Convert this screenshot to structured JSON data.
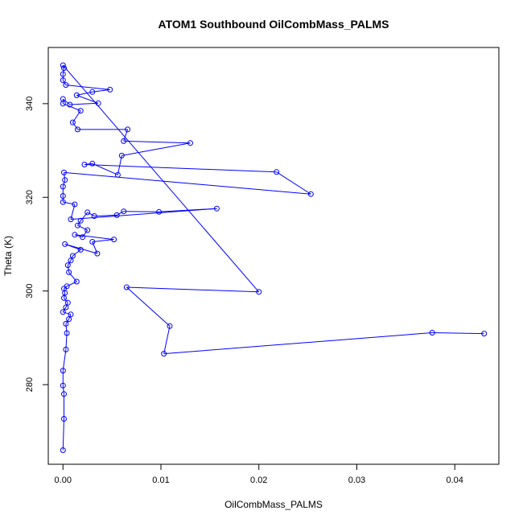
{
  "chart_data": {
    "type": "line",
    "title": "ATOM1 Southbound OilCombMass_PALMS",
    "xlabel": "OilCombMass_PALMS",
    "ylabel": "Theta (K)",
    "xlim": [
      -0.0015,
      0.0445
    ],
    "ylim": [
      263,
      352
    ],
    "xticks": [
      0.0,
      0.01,
      0.02,
      0.03,
      0.04
    ],
    "xtick_labels": [
      "0.00",
      "0.01",
      "0.02",
      "0.03",
      "0.04"
    ],
    "yticks": [
      280,
      300,
      320,
      340
    ],
    "ytick_labels": [
      "280",
      "300",
      "320",
      "340"
    ],
    "grid": false,
    "legend": "none",
    "colors": {
      "series": "#0000ff",
      "axes": "#000000"
    },
    "series": [
      {
        "marker": "open-circle",
        "points": [
          [
            0.0,
            266.0
          ],
          [
            0.0001,
            272.7
          ],
          [
            0.0001,
            278.0
          ],
          [
            0.0,
            279.8
          ],
          [
            0.0,
            283.0
          ],
          [
            0.0003,
            287.5
          ],
          [
            0.0004,
            291.0
          ],
          [
            0.0003,
            293.0
          ],
          [
            0.0006,
            294.0
          ],
          [
            0.0008,
            295.0
          ],
          [
            0.0,
            295.5
          ],
          [
            0.0003,
            296.5
          ],
          [
            0.0005,
            297.5
          ],
          [
            0.0001,
            298.5
          ],
          [
            0.0002,
            299.6
          ],
          [
            0.0001,
            300.5
          ],
          [
            0.0004,
            301.0
          ],
          [
            0.0014,
            302.0
          ],
          [
            0.0006,
            304.0
          ],
          [
            0.0005,
            305.5
          ],
          [
            0.0008,
            306.5
          ],
          [
            0.001,
            307.5
          ],
          [
            0.0018,
            308.8
          ],
          [
            0.0002,
            310.0
          ],
          [
            0.0035,
            308.0
          ],
          [
            0.003,
            310.5
          ],
          [
            0.0052,
            311.0
          ],
          [
            0.0012,
            312.0
          ],
          [
            0.002,
            311.5
          ],
          [
            0.0025,
            313.0
          ],
          [
            0.0015,
            314.0
          ],
          [
            0.0018,
            315.0
          ],
          [
            0.0025,
            316.8
          ],
          [
            0.0032,
            316.0
          ],
          [
            0.0055,
            316.2
          ],
          [
            0.0062,
            317.0
          ],
          [
            0.0098,
            316.9
          ],
          [
            0.0157,
            317.6
          ],
          [
            0.0008,
            315.3
          ],
          [
            0.0012,
            318.5
          ],
          [
            0.0,
            319.0
          ],
          [
            0.0,
            320.3
          ],
          [
            0.0,
            322.3
          ],
          [
            0.0002,
            323.7
          ],
          [
            0.0001,
            325.3
          ],
          [
            0.0253,
            320.7
          ],
          [
            0.0218,
            325.4
          ],
          [
            0.0022,
            327.0
          ],
          [
            0.003,
            327.2
          ],
          [
            0.0056,
            324.8
          ],
          [
            0.006,
            328.9
          ],
          [
            0.013,
            331.6
          ],
          [
            0.0062,
            332.0
          ],
          [
            0.0066,
            334.5
          ],
          [
            0.0015,
            334.5
          ],
          [
            0.001,
            336.0
          ],
          [
            0.0018,
            338.5
          ],
          [
            0.0,
            340.0
          ],
          [
            0.0,
            341.0
          ],
          [
            0.0007,
            339.8
          ],
          [
            0.0036,
            340.1
          ],
          [
            0.0014,
            341.8
          ],
          [
            0.003,
            342.5
          ],
          [
            0.0048,
            343.0
          ],
          [
            0.0003,
            344.0
          ],
          [
            0.0,
            345.0
          ],
          [
            0.0,
            346.3
          ],
          [
            0.0001,
            347.6
          ],
          [
            0.0,
            348.2
          ],
          [
            0.02,
            299.8
          ],
          [
            0.0065,
            300.8
          ],
          [
            0.0109,
            292.5
          ],
          [
            0.0103,
            286.6
          ],
          [
            0.0377,
            291.1
          ],
          [
            0.043,
            290.9
          ]
        ]
      }
    ]
  }
}
